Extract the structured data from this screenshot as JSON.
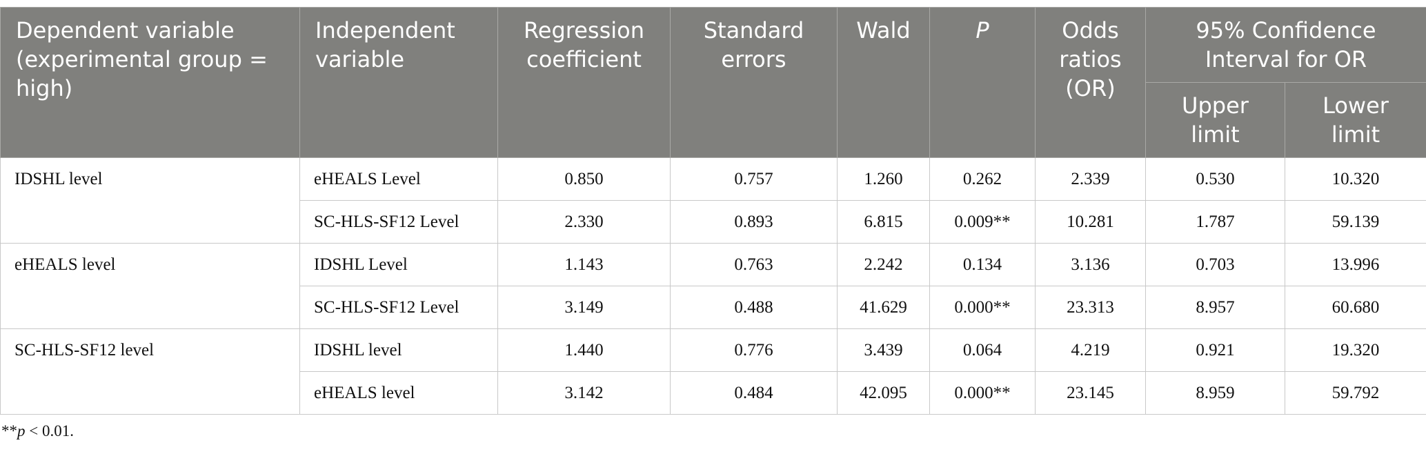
{
  "table": {
    "header": [
      "Dependent variable (experimental group = high)",
      "Independent variable",
      "Regression coefficient",
      "Standard errors",
      "Wald",
      "P",
      "Odds ratios (OR)"
    ],
    "ci_header": "95% Confidence Interval for OR",
    "ci_subheaders": [
      "Upper limit",
      "Lower limit"
    ],
    "groups": [
      {
        "dependent": "IDSHL level",
        "rows": [
          [
            "eHEALS Level",
            "0.850",
            "0.757",
            "1.260",
            "0.262",
            "2.339",
            "0.530",
            "10.320"
          ],
          [
            "SC-HLS-SF12 Level",
            "2.330",
            "0.893",
            "6.815",
            "0.009**",
            "10.281",
            "1.787",
            "59.139"
          ]
        ]
      },
      {
        "dependent": "eHEALS level",
        "rows": [
          [
            "IDSHL Level",
            "1.143",
            "0.763",
            "2.242",
            "0.134",
            "3.136",
            "0.703",
            "13.996"
          ],
          [
            "SC-HLS-SF12 Level",
            "3.149",
            "0.488",
            "41.629",
            "0.000**",
            "23.313",
            "8.957",
            "60.680"
          ]
        ]
      },
      {
        "dependent": "SC-HLS-SF12 level",
        "rows": [
          [
            "IDSHL level",
            "1.440",
            "0.776",
            "3.439",
            "0.064",
            "4.219",
            "0.921",
            "19.320"
          ],
          [
            "eHEALS level",
            "3.142",
            "0.484",
            "42.095",
            "0.000**",
            "23.145",
            "8.959",
            "59.792"
          ]
        ]
      }
    ]
  },
  "footnote": {
    "prefix": "**",
    "symbol": "p",
    "text": " < 0.01."
  }
}
